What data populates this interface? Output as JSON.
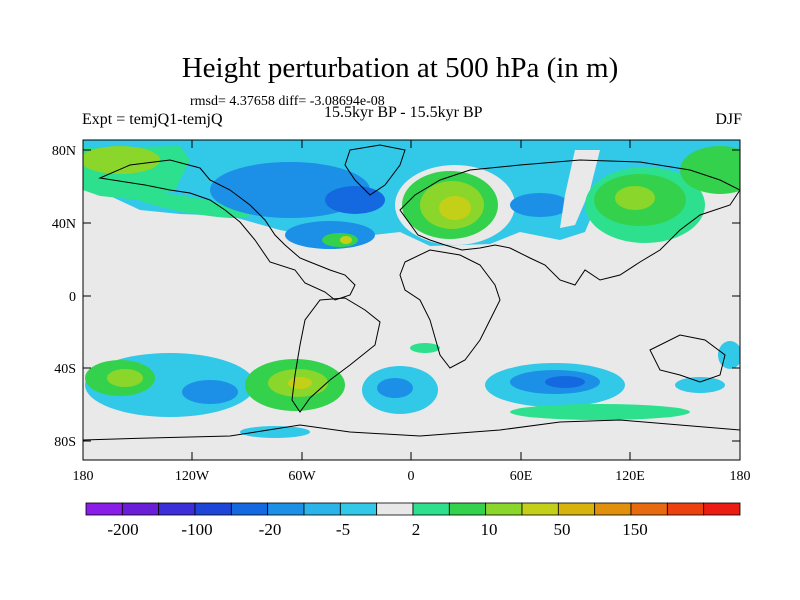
{
  "title": "Height perturbation at 500 hPa (in m)",
  "stats": "rmsd= 4.37658 diff= -3.08694e-08",
  "experiment": "Expt = temjQ1-temjQ",
  "period": "15.5kyr BP - 15.5kyr BP",
  "season": "DJF",
  "lat_labels": [
    "80N",
    "40N",
    "0",
    "40S",
    "80S"
  ],
  "lon_labels": [
    "180",
    "120W",
    "60W",
    "0",
    "60E",
    "120E",
    "180"
  ],
  "colorbar": {
    "labels": [
      "-200",
      "-100",
      "-20",
      "-5",
      "2",
      "10",
      "50",
      "150"
    ],
    "colors": [
      "#8a1ee8",
      "#6a1ed8",
      "#3c2fd8",
      "#1d45d8",
      "#1569e0",
      "#1b90e6",
      "#2ab4ea",
      "#32c8e8",
      "#e8e8e8",
      "#2de08e",
      "#34d24c",
      "#8ad62a",
      "#c4d018",
      "#d6b40c",
      "#e0900c",
      "#e86a10",
      "#ec4010",
      "#ec1c12"
    ]
  },
  "field_colors": {
    "neutral": "#e9e9e9",
    "blue_light": "#32c8e8",
    "blue_mid": "#1b90e6",
    "blue_dark": "#1569e0",
    "green_light": "#2de08e",
    "green": "#34d24c",
    "yellow_green": "#8ad62a",
    "yellow": "#c4d018"
  }
}
